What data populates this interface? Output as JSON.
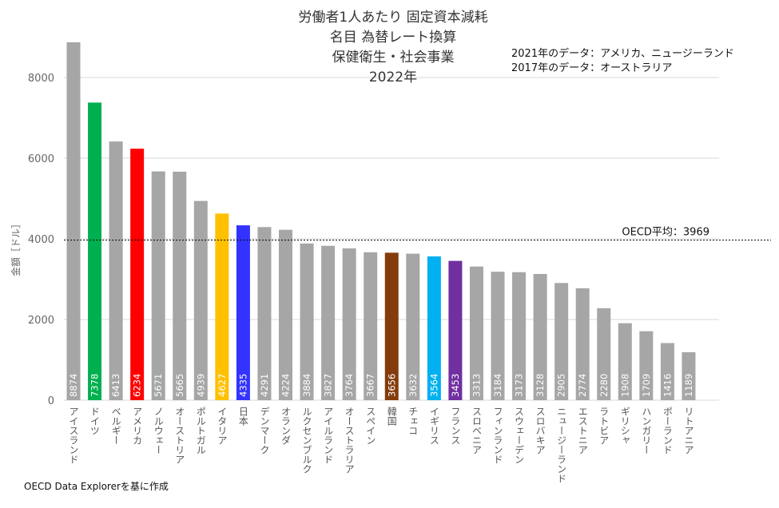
{
  "chart_data": {
    "type": "bar",
    "title_lines": [
      "労働者1人あたり 固定資本減耗",
      "名目 為替レート換算",
      "保健衛生・社会事業",
      "2022年"
    ],
    "notes": [
      "2021年のデータ：アメリカ、ニュージーランド",
      "2017年のデータ：オーストラリア"
    ],
    "ylabel": "金額［ドル］",
    "xlabel": "",
    "ylim": [
      0,
      8900
    ],
    "yticks": [
      0,
      2000,
      4000,
      6000,
      8000
    ],
    "grid": true,
    "reference_line": {
      "label": "OECD平均：3969",
      "value": 3969
    },
    "source": "OECD Data Explorerを基に作成",
    "default_color": "#a6a6a6",
    "categories": [
      "アイスランド",
      "ドイツ",
      "ベルギー",
      "アメリカ",
      "ノルウェー",
      "オーストリア",
      "ポルトガル",
      "イタリア",
      "日本",
      "デンマーク",
      "オランダ",
      "ルクセンブルク",
      "アイルランド",
      "オーストラリア",
      "スペイン",
      "韓国",
      "チェコ",
      "イギリス",
      "フランス",
      "スロベニア",
      "フィンランド",
      "スウェーデン",
      "スロバキア",
      "ニュージーランド",
      "エストニア",
      "ラトビア",
      "ギリシャ",
      "ハンガリー",
      "ポーランド",
      "リトアニア"
    ],
    "values": [
      8874,
      7378,
      6413,
      6234,
      5671,
      5665,
      4939,
      4627,
      4335,
      4291,
      4224,
      3884,
      3827,
      3764,
      3667,
      3656,
      3632,
      3564,
      3453,
      3313,
      3184,
      3173,
      3128,
      2905,
      2774,
      2280,
      1908,
      1709,
      1416,
      1189
    ],
    "highlight_colors": {
      "ドイツ": "#00b050",
      "アメリカ": "#ff0000",
      "イタリア": "#ffc000",
      "日本": "#3333ff",
      "韓国": "#843c0c",
      "イギリス": "#00b0f0",
      "フランス": "#7030a0"
    }
  }
}
